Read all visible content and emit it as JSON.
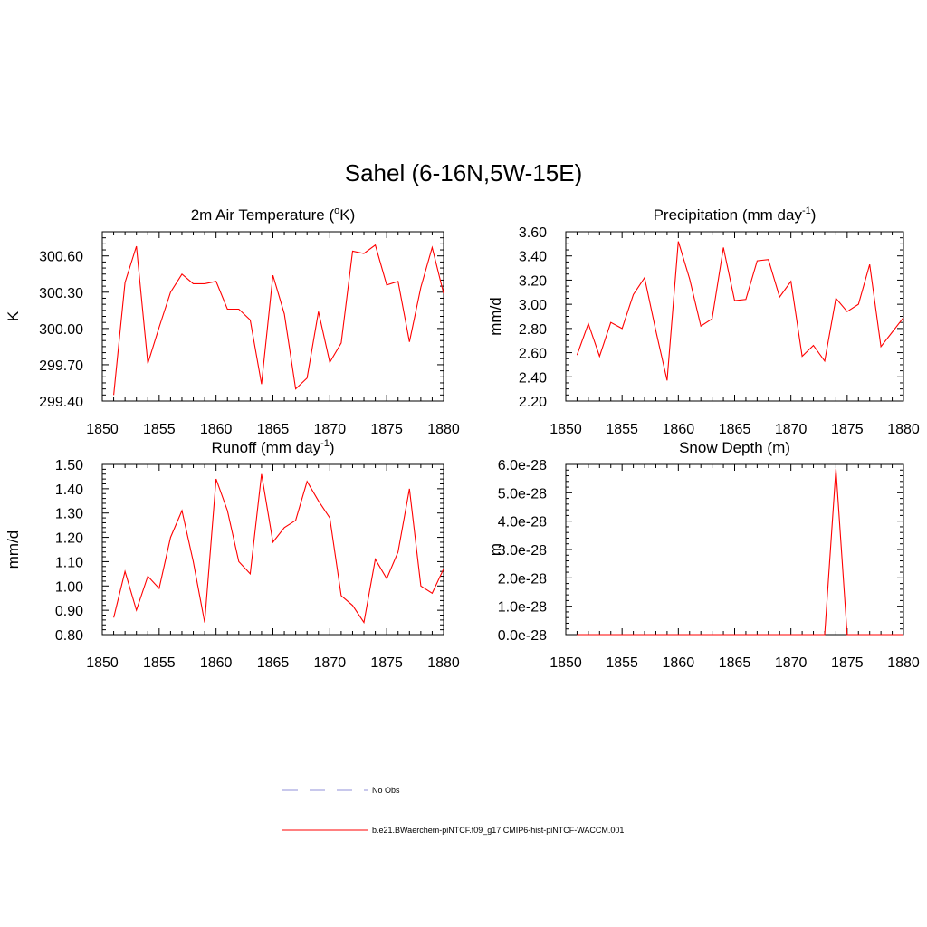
{
  "figure": {
    "title": "Sahel (6-16N,5W-15E)"
  },
  "legend": {
    "obs_label": "No Obs",
    "obs_color": "#a8a8e0",
    "model_label": "b.e21.BWaerchem-piNTCF.f09_g17.CMIP6-hist-piNTCF-WACCM.001",
    "model_color": "#ff0000"
  },
  "chart_data": [
    {
      "type": "line",
      "title": "2m Air Temperature (",
      "title_sup": "o",
      "title_end": "K)",
      "ylabel": "K",
      "xlim": [
        1850,
        1880
      ],
      "ylim": [
        299.4,
        300.8
      ],
      "xticks": [
        "1850",
        "1855",
        "1860",
        "1865",
        "1870",
        "1875",
        "1880"
      ],
      "yticks": [
        "299.40",
        "299.70",
        "300.00",
        "300.30",
        "300.60"
      ],
      "series": [
        {
          "color": "#ff0000",
          "x": [
            1851,
            1852,
            1853,
            1854,
            1855,
            1856,
            1857,
            1858,
            1859,
            1860,
            1861,
            1862,
            1863,
            1864,
            1865,
            1866,
            1867,
            1868,
            1869,
            1870,
            1871,
            1872,
            1873,
            1874,
            1875,
            1876,
            1877,
            1878,
            1879,
            1880
          ],
          "values": [
            299.45,
            300.38,
            300.68,
            299.71,
            300.01,
            300.3,
            300.45,
            300.37,
            300.37,
            300.39,
            300.16,
            300.16,
            300.07,
            299.54,
            300.44,
            300.12,
            299.5,
            299.59,
            300.14,
            299.72,
            299.88,
            300.64,
            300.62,
            300.69,
            300.36,
            300.39,
            299.89,
            300.34,
            300.67,
            300.29
          ]
        }
      ]
    },
    {
      "type": "line",
      "title": "Precipitation (mm day",
      "title_sup": "-1",
      "title_end": ")",
      "ylabel": "mm/d",
      "xlim": [
        1850,
        1880
      ],
      "ylim": [
        2.2,
        3.6
      ],
      "xticks": [
        "1850",
        "1855",
        "1860",
        "1865",
        "1870",
        "1875",
        "1880"
      ],
      "yticks": [
        "2.20",
        "2.40",
        "2.60",
        "2.80",
        "3.00",
        "3.20",
        "3.40",
        "3.60"
      ],
      "series": [
        {
          "color": "#ff0000",
          "x": [
            1851,
            1852,
            1853,
            1854,
            1855,
            1856,
            1857,
            1858,
            1859,
            1860,
            1861,
            1862,
            1863,
            1864,
            1865,
            1866,
            1867,
            1868,
            1869,
            1870,
            1871,
            1872,
            1873,
            1874,
            1875,
            1876,
            1877,
            1878,
            1879,
            1880
          ],
          "values": [
            2.58,
            2.84,
            2.57,
            2.85,
            2.8,
            3.08,
            3.22,
            2.78,
            2.37,
            3.52,
            3.21,
            2.82,
            2.88,
            3.47,
            3.03,
            3.04,
            3.36,
            3.37,
            3.06,
            3.19,
            2.57,
            2.66,
            2.53,
            3.05,
            2.94,
            3.0,
            3.33,
            2.65,
            2.77,
            2.89
          ]
        }
      ]
    },
    {
      "type": "line",
      "title": "Runoff (mm day",
      "title_sup": "-1",
      "title_end": ")",
      "ylabel": "mm/d",
      "xlim": [
        1850,
        1880
      ],
      "ylim": [
        0.8,
        1.5
      ],
      "xticks": [
        "1850",
        "1855",
        "1860",
        "1865",
        "1870",
        "1875",
        "1880"
      ],
      "yticks": [
        "0.80",
        "0.90",
        "1.00",
        "1.10",
        "1.20",
        "1.30",
        "1.40",
        "1.50"
      ],
      "series": [
        {
          "color": "#ff0000",
          "x": [
            1851,
            1852,
            1853,
            1854,
            1855,
            1856,
            1857,
            1858,
            1859,
            1860,
            1861,
            1862,
            1863,
            1864,
            1865,
            1866,
            1867,
            1868,
            1869,
            1870,
            1871,
            1872,
            1873,
            1874,
            1875,
            1876,
            1877,
            1878,
            1879,
            1880
          ],
          "values": [
            0.87,
            1.06,
            0.9,
            1.04,
            0.99,
            1.2,
            1.31,
            1.1,
            0.85,
            1.44,
            1.31,
            1.1,
            1.05,
            1.46,
            1.18,
            1.24,
            1.27,
            1.43,
            1.35,
            1.28,
            0.96,
            0.92,
            0.85,
            1.11,
            1.03,
            1.14,
            1.4,
            1.0,
            0.97,
            1.07
          ]
        }
      ]
    },
    {
      "type": "line",
      "title": "Snow Depth (m)",
      "title_sup": "",
      "title_end": "",
      "ylabel": "m",
      "xlim": [
        1850,
        1880
      ],
      "ylim": [
        0,
        6.0
      ],
      "xticks": [
        "1850",
        "1855",
        "1860",
        "1865",
        "1870",
        "1875",
        "1880"
      ],
      "yticks": [
        "0.0e-28",
        "1.0e-28",
        "2.0e-28",
        "3.0e-28",
        "4.0e-28",
        "5.0e-28",
        "6.0e-28"
      ],
      "y_unit_note": "values in units of 1e-28 m",
      "series": [
        {
          "color": "#ff0000",
          "x": [
            1851,
            1852,
            1853,
            1854,
            1855,
            1856,
            1857,
            1858,
            1859,
            1860,
            1861,
            1862,
            1863,
            1864,
            1865,
            1866,
            1867,
            1868,
            1869,
            1870,
            1871,
            1872,
            1873,
            1874,
            1875,
            1876,
            1877,
            1878,
            1879,
            1880
          ],
          "values": [
            0,
            0,
            0,
            0,
            0,
            0,
            0,
            0,
            0,
            0,
            0,
            0,
            0,
            0,
            0,
            0,
            0,
            0,
            0,
            0,
            0,
            0,
            0,
            5.85,
            0,
            0,
            0,
            0,
            0,
            0
          ]
        }
      ]
    }
  ]
}
